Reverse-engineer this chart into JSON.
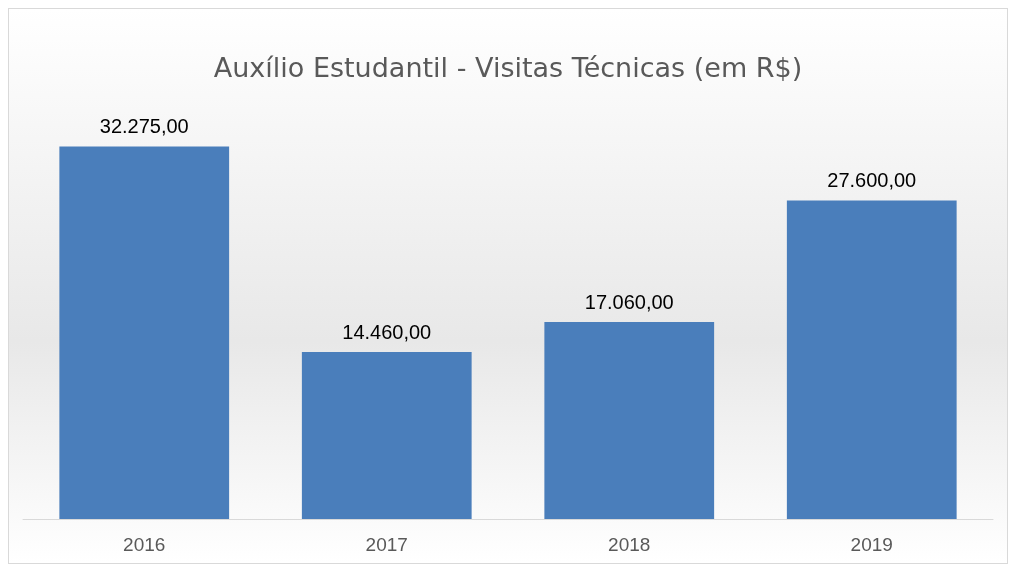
{
  "chart_data": {
    "type": "bar",
    "title": "Auxílio Estudantil - Visitas Técnicas (em R$)",
    "categories": [
      "2016",
      "2017",
      "2018",
      "2019"
    ],
    "values": [
      32275,
      14460,
      17060,
      27600
    ],
    "value_labels": [
      "32.275,00",
      "14.460,00",
      "17.060,00",
      "27.600,00"
    ],
    "color": "#4a7ebb"
  }
}
